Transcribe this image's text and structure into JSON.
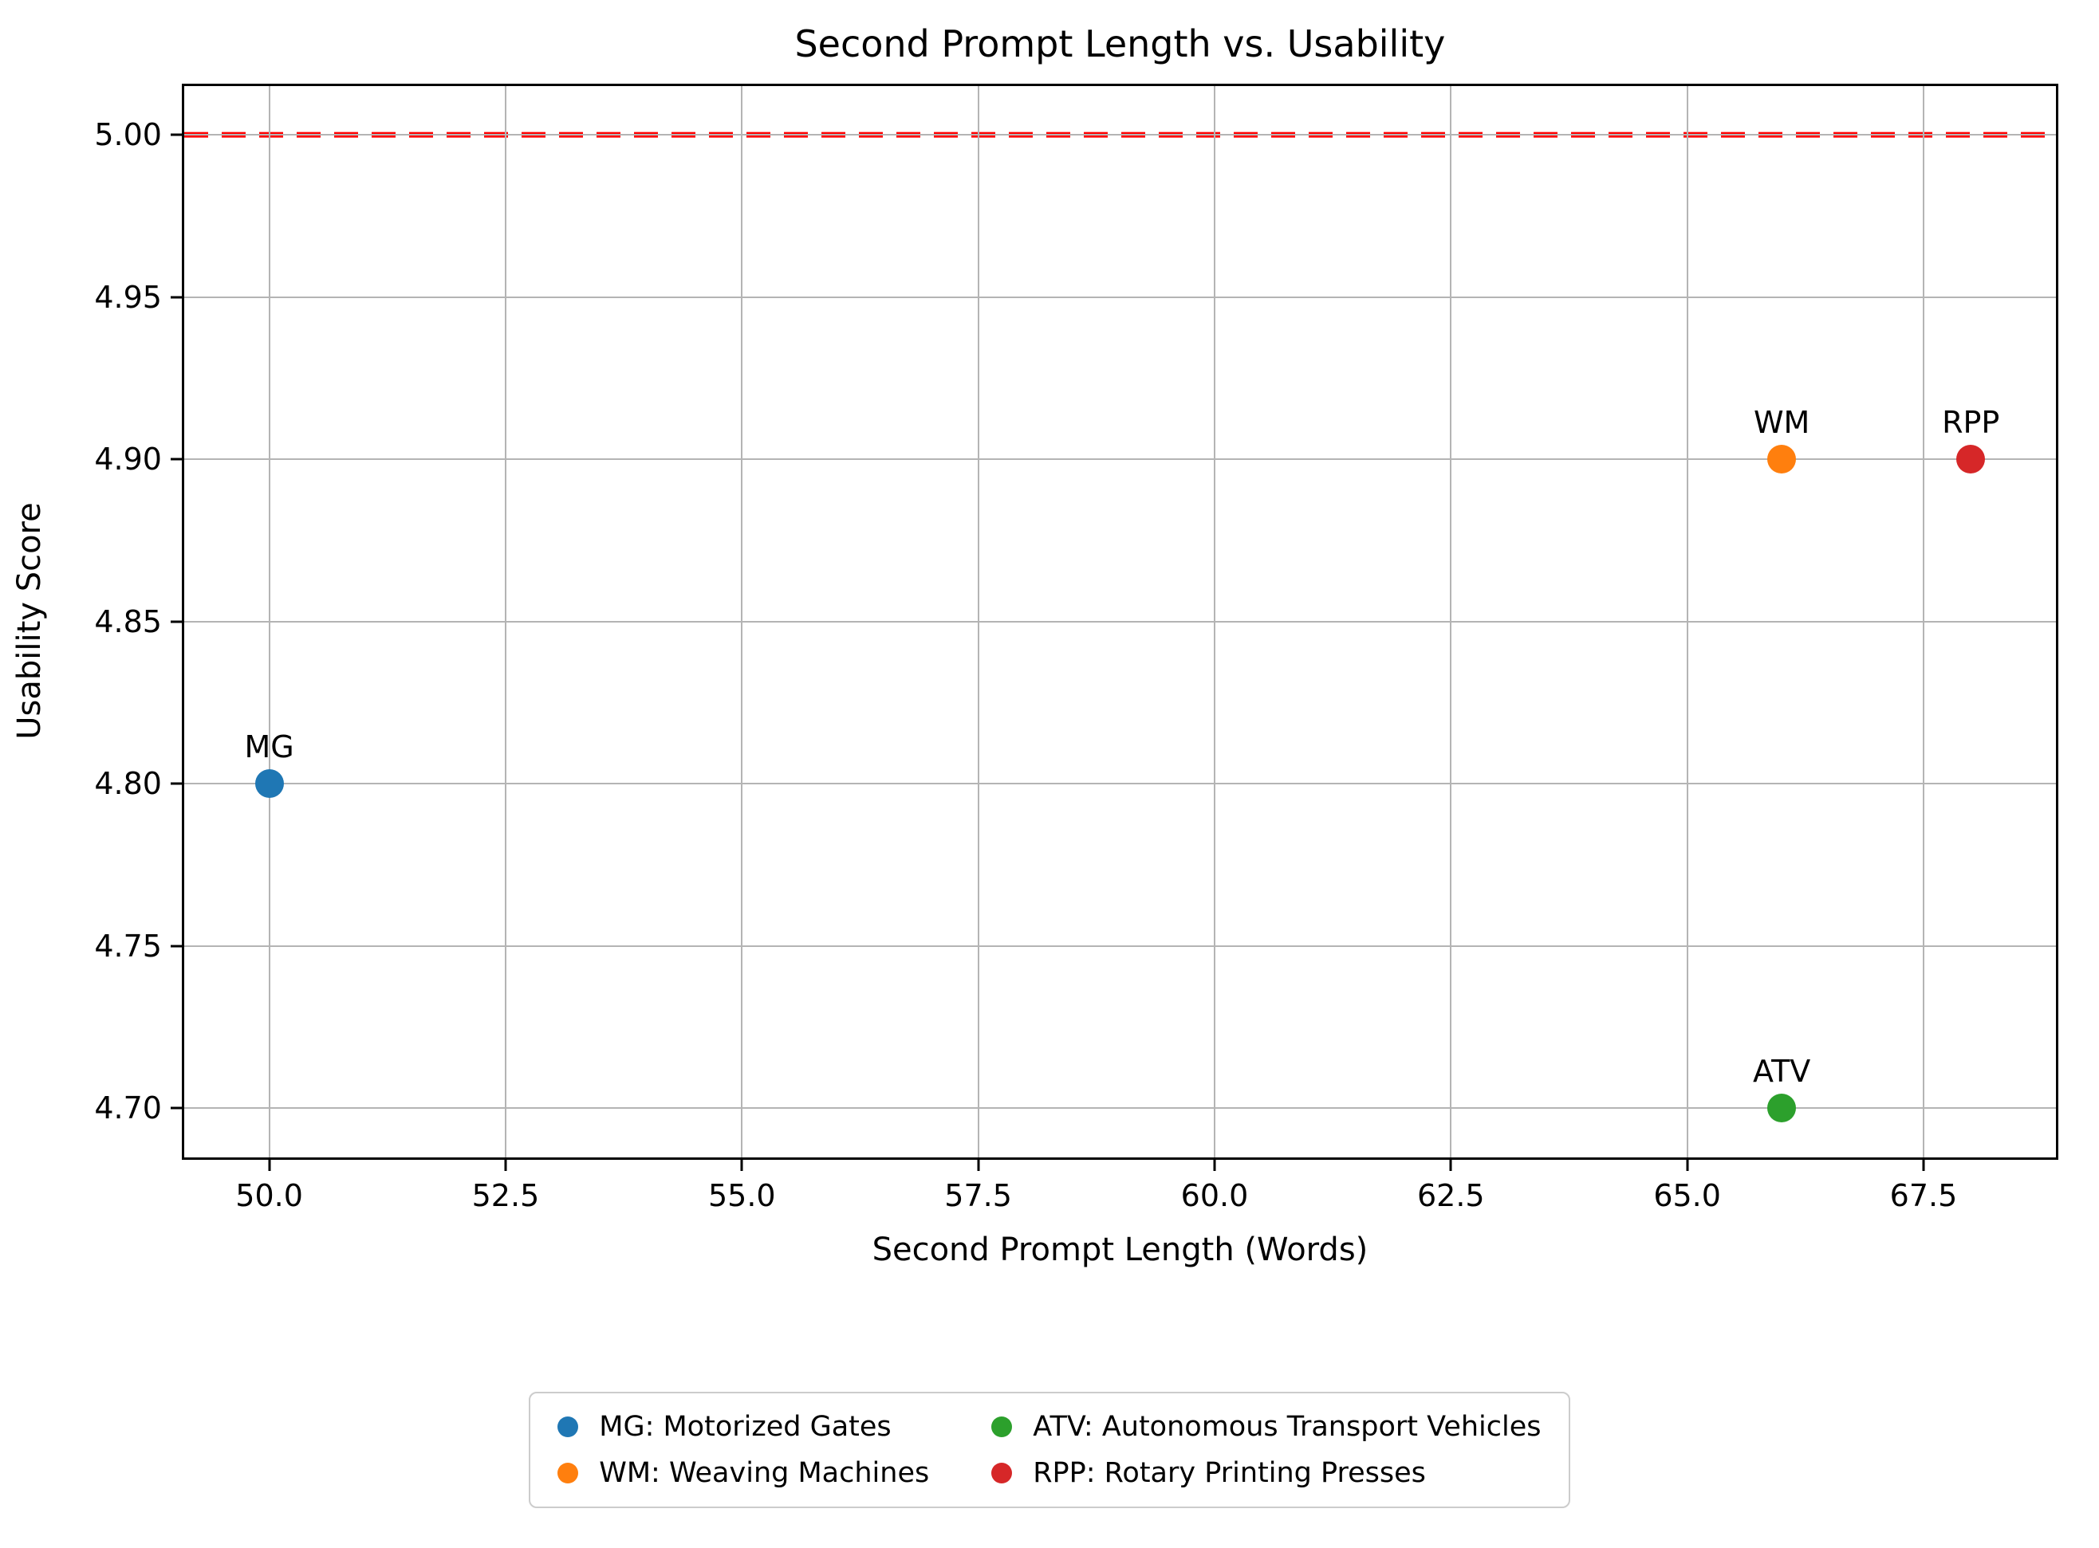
{
  "chart_data": {
    "type": "scatter",
    "title": "Second Prompt Length vs. Usability",
    "xlabel": "Second Prompt Length (Words)",
    "ylabel": "Usability Score",
    "xlim": [
      49.1,
      68.9
    ],
    "ylim": [
      4.685,
      5.015
    ],
    "grid": true,
    "xticks": [
      {
        "value": 50.0,
        "label": "50.0"
      },
      {
        "value": 52.5,
        "label": "52.5"
      },
      {
        "value": 55.0,
        "label": "55.0"
      },
      {
        "value": 57.5,
        "label": "57.5"
      },
      {
        "value": 60.0,
        "label": "60.0"
      },
      {
        "value": 62.5,
        "label": "62.5"
      },
      {
        "value": 65.0,
        "label": "65.0"
      },
      {
        "value": 67.5,
        "label": "67.5"
      }
    ],
    "yticks": [
      {
        "value": 4.7,
        "label": "4.70"
      },
      {
        "value": 4.75,
        "label": "4.75"
      },
      {
        "value": 4.8,
        "label": "4.80"
      },
      {
        "value": 4.85,
        "label": "4.85"
      },
      {
        "value": 4.9,
        "label": "4.90"
      },
      {
        "value": 4.95,
        "label": "4.95"
      },
      {
        "value": 5.0,
        "label": "5.00"
      }
    ],
    "points": [
      {
        "label": "MG",
        "name": "Motorized Gates",
        "x": 50,
        "y": 4.8,
        "color": "#1f77b4"
      },
      {
        "label": "WM",
        "name": "Weaving Machines",
        "x": 66,
        "y": 4.9,
        "color": "#ff7f0e"
      },
      {
        "label": "ATV",
        "name": "Autonomous Transport Vehicles",
        "x": 66,
        "y": 4.7,
        "color": "#2ca02c"
      },
      {
        "label": "RPP",
        "name": "Rotary Printing Presses",
        "x": 68,
        "y": 4.9,
        "color": "#d62728"
      }
    ],
    "reference_line": {
      "y": 5.0,
      "color": "#ff0000",
      "style": "dashed"
    },
    "legend": {
      "position": "bottom-center",
      "columns": 2,
      "entries": [
        {
          "label": "MG: Motorized Gates",
          "color": "#1f77b4"
        },
        {
          "label": "WM: Weaving Machines",
          "color": "#ff7f0e"
        },
        {
          "label": "ATV: Autonomous Transport Vehicles",
          "color": "#2ca02c"
        },
        {
          "label": "RPP: Rotary Printing Presses",
          "color": "#d62728"
        }
      ]
    },
    "style": {
      "grid_color": "#b4b4b4",
      "spine_color": "#000000",
      "background": "#ffffff"
    }
  }
}
